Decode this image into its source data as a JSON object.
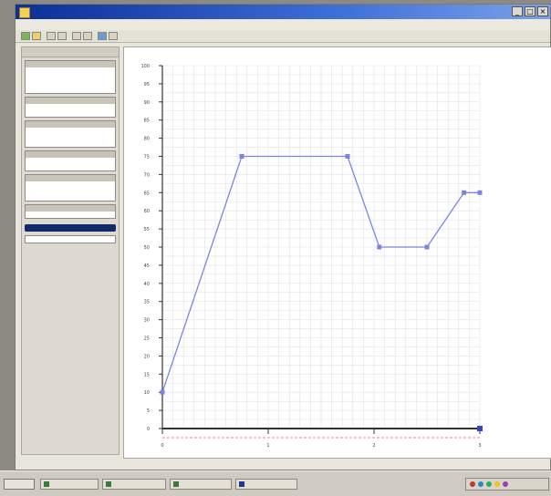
{
  "window": {
    "title": "",
    "menus": [
      "",
      "",
      "",
      "",
      "",
      ""
    ]
  },
  "left_panel": {
    "header": "",
    "sections": [
      {
        "rows": 4
      },
      {
        "rows": 2
      },
      {
        "rows": 3
      },
      {
        "rows": 2
      },
      {
        "rows": 3
      },
      {
        "rows": 2
      }
    ]
  },
  "chart_data": {
    "type": "line",
    "title": "",
    "xlabel": "",
    "ylabel": "",
    "xlim": [
      0,
      3
    ],
    "ylim": [
      0,
      100
    ],
    "ytick_step": 5,
    "x_ticks": [
      0,
      1,
      2,
      3
    ],
    "grid": true,
    "line_color": "#7b84e6",
    "series": [
      {
        "name": "",
        "x": [
          0,
          0.75,
          1.75,
          2.05,
          2.5,
          2.85,
          3.0
        ],
        "y": [
          10,
          75,
          75,
          50,
          50,
          65,
          65
        ]
      }
    ]
  },
  "taskbar": {
    "start_label": "",
    "tasks": [
      "",
      "",
      "",
      ""
    ],
    "clock": ""
  }
}
